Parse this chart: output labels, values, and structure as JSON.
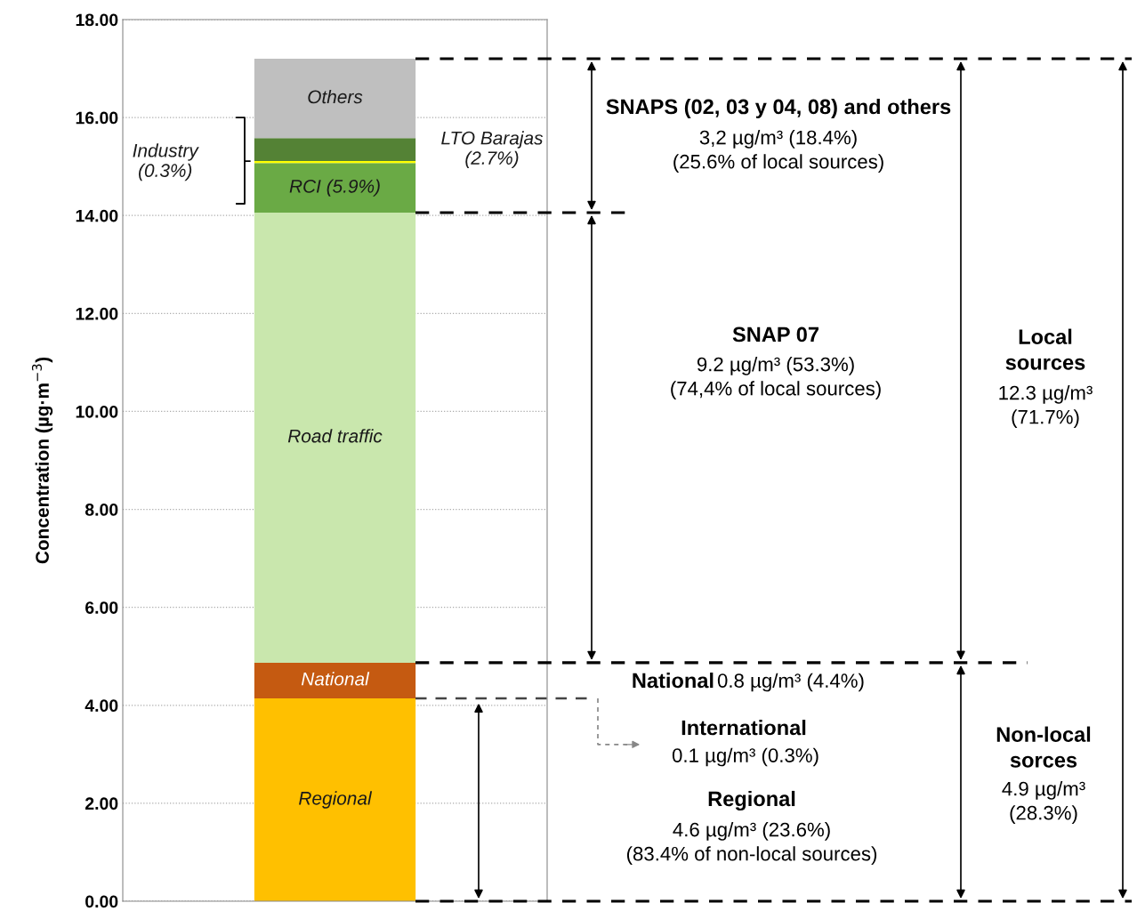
{
  "chart_data": {
    "type": "bar",
    "stacked": true,
    "ylabel": "Concentration (µg·m$^{−3}$)",
    "categories": [
      null
    ],
    "series": [
      {
        "name": "Regional",
        "color": "#ffc000",
        "values": [
          4.14
        ]
      },
      {
        "name": "National",
        "color": "#c55a11",
        "values": [
          0.73
        ]
      },
      {
        "name": "Road traffic",
        "color": "#c9e7ad",
        "values": [
          9.19
        ]
      },
      {
        "name": "RCI (5.9%)",
        "color": "#6aaa45",
        "values": [
          1.01
        ]
      },
      {
        "name": "Industry\n(0.3%)",
        "color": "#ffff00",
        "values": [
          0.04
        ]
      },
      {
        "name": "LTO Barajas\n(2.7%)",
        "color": "#548235",
        "values": [
          0.47
        ]
      },
      {
        "name": "Others",
        "color": "#bfbfbf",
        "values": [
          1.62
        ]
      }
    ],
    "ylim": [
      0,
      18
    ],
    "yticks": [
      {
        "value": 0,
        "label": "0.00"
      },
      {
        "value": 2,
        "label": "2.00"
      },
      {
        "value": 4,
        "label": "4.00"
      },
      {
        "value": 6,
        "label": "6.00"
      },
      {
        "value": 8,
        "label": "8.00"
      },
      {
        "value": 10,
        "label": "10.00"
      },
      {
        "value": 12,
        "label": "12.00"
      },
      {
        "value": 14,
        "label": "14.00"
      },
      {
        "value": 16,
        "label": "16.00"
      },
      {
        "value": 18,
        "label": "18.00"
      }
    ],
    "grid": "y",
    "legend": false,
    "tick_labels": "y",
    "annotations": [
      "SNAPS (02, 03 y 04, 08) and others",
      "3,2 µg/m³ (18.4%)\n(25.6% of local sources)",
      "SNAP 07",
      "9.2 µg/m³ (53.3%)\n(74,4% of local sources)",
      "Local\nsources",
      "12.3 µg/m³\n(71.7%)",
      "National",
      "0.8 µg/m³ (4.4%)",
      "International",
      "0.1 µg/m³ (0.3%)",
      "Regional",
      "4.6 µg/m³ (23.6%)\n(83.4% of non-local sources)",
      "Non-local\nsorces",
      "4.9 µg/m³\n(28.3%)"
    ]
  }
}
